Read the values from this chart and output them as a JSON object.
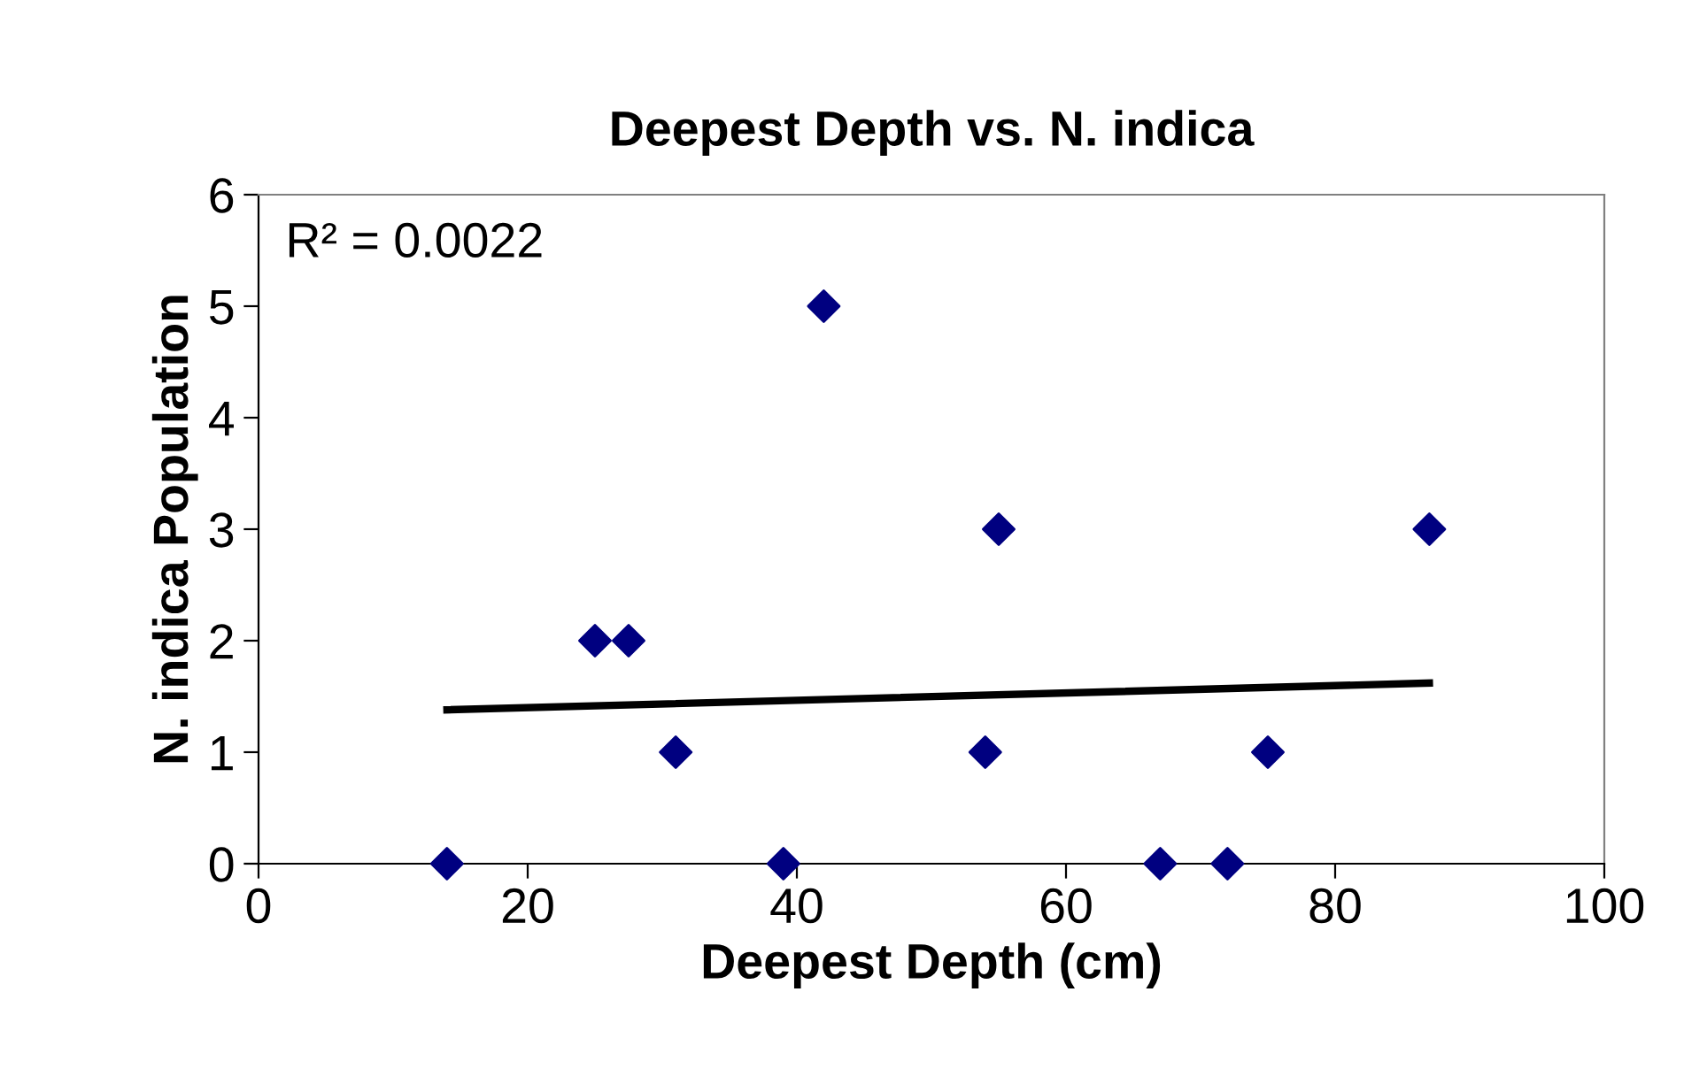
{
  "chart_data": {
    "type": "scatter",
    "title": "Deepest Depth vs. N. indica",
    "xlabel": "Deepest Depth (cm)",
    "ylabel": "N. indica Population",
    "xlim": [
      0,
      100
    ],
    "xticks": [
      0,
      20,
      40,
      60,
      80,
      100
    ],
    "ylim": [
      0,
      6
    ],
    "yticks": [
      0,
      1,
      2,
      3,
      4,
      5,
      6
    ],
    "grid": false,
    "legend": false,
    "marker": "diamond",
    "annotations": [
      "R² = 0.0022"
    ],
    "series": [
      {
        "color": "#000080",
        "x": [
          14,
          25,
          27.5,
          31,
          39,
          42,
          54,
          55,
          67,
          72,
          75,
          87
        ],
        "values": [
          0,
          2,
          2,
          1,
          0,
          5,
          1,
          3,
          0,
          0,
          1,
          3
        ]
      },
      {
        "type": "line",
        "color": "#000000",
        "line_style": "solid",
        "marker": "none",
        "x": [
          14,
          87
        ],
        "values": [
          1.38,
          1.62
        ]
      }
    ]
  }
}
